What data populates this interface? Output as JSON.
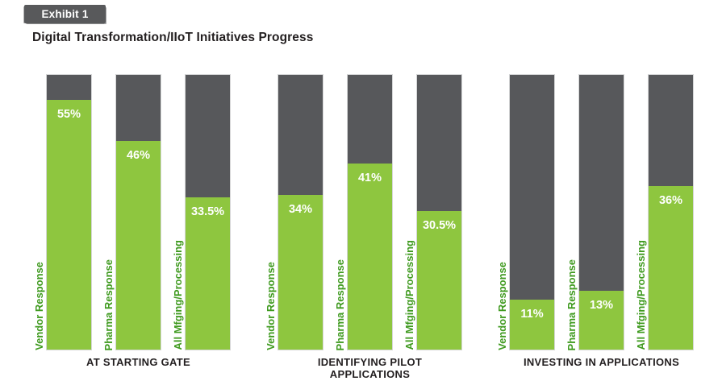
{
  "exhibit_badge": {
    "label": "Exhibit 1"
  },
  "title": "Digital Transformation/IIoT Initiatives Progress",
  "colors": {
    "bar_green": "#8ec63f",
    "bar_gray": "#57585b",
    "bar_border": "#d5d6d7",
    "series_label_green": "#3f9a1f",
    "value_text": "#ffffff",
    "badge_bg": "#58595b",
    "badge_text": "#ffffff",
    "title_text": "#231f20",
    "axis_label_text": "#231f20"
  },
  "chart_data": {
    "type": "bar",
    "subtype": "stacked-column-percentage",
    "title": "Digital Transformation/IIoT Initiatives Progress",
    "xlabel": "",
    "ylabel": "",
    "grid": false,
    "legend": "none",
    "axis_ticks": "none",
    "scale_max_pct": 60.5,
    "series_names": [
      "Vendor Response",
      "Pharma Response",
      "All Mfging/Processing"
    ],
    "groups": [
      {
        "label": "AT STARTING GATE",
        "bars": [
          {
            "series": "Vendor Response",
            "value": 55,
            "display": "55%"
          },
          {
            "series": "Pharma Response",
            "value": 46,
            "display": "46%"
          },
          {
            "series": "All Mfging/Processing",
            "value": 33.5,
            "display": "33.5%"
          }
        ]
      },
      {
        "label": "IDENTIFYING PILOT APPLICATIONS",
        "bars": [
          {
            "series": "Vendor Response",
            "value": 34,
            "display": "34%"
          },
          {
            "series": "Pharma Response",
            "value": 41,
            "display": "41%"
          },
          {
            "series": "All Mfging/Processing",
            "value": 30.5,
            "display": "30.5%"
          }
        ]
      },
      {
        "label": "INVESTING IN APPLICATIONS",
        "bars": [
          {
            "series": "Vendor Response",
            "value": 11,
            "display": "11%"
          },
          {
            "series": "Pharma Response",
            "value": 13,
            "display": "13%"
          },
          {
            "series": "All Mfging/Processing",
            "value": 36,
            "display": "36%"
          }
        ]
      }
    ]
  }
}
